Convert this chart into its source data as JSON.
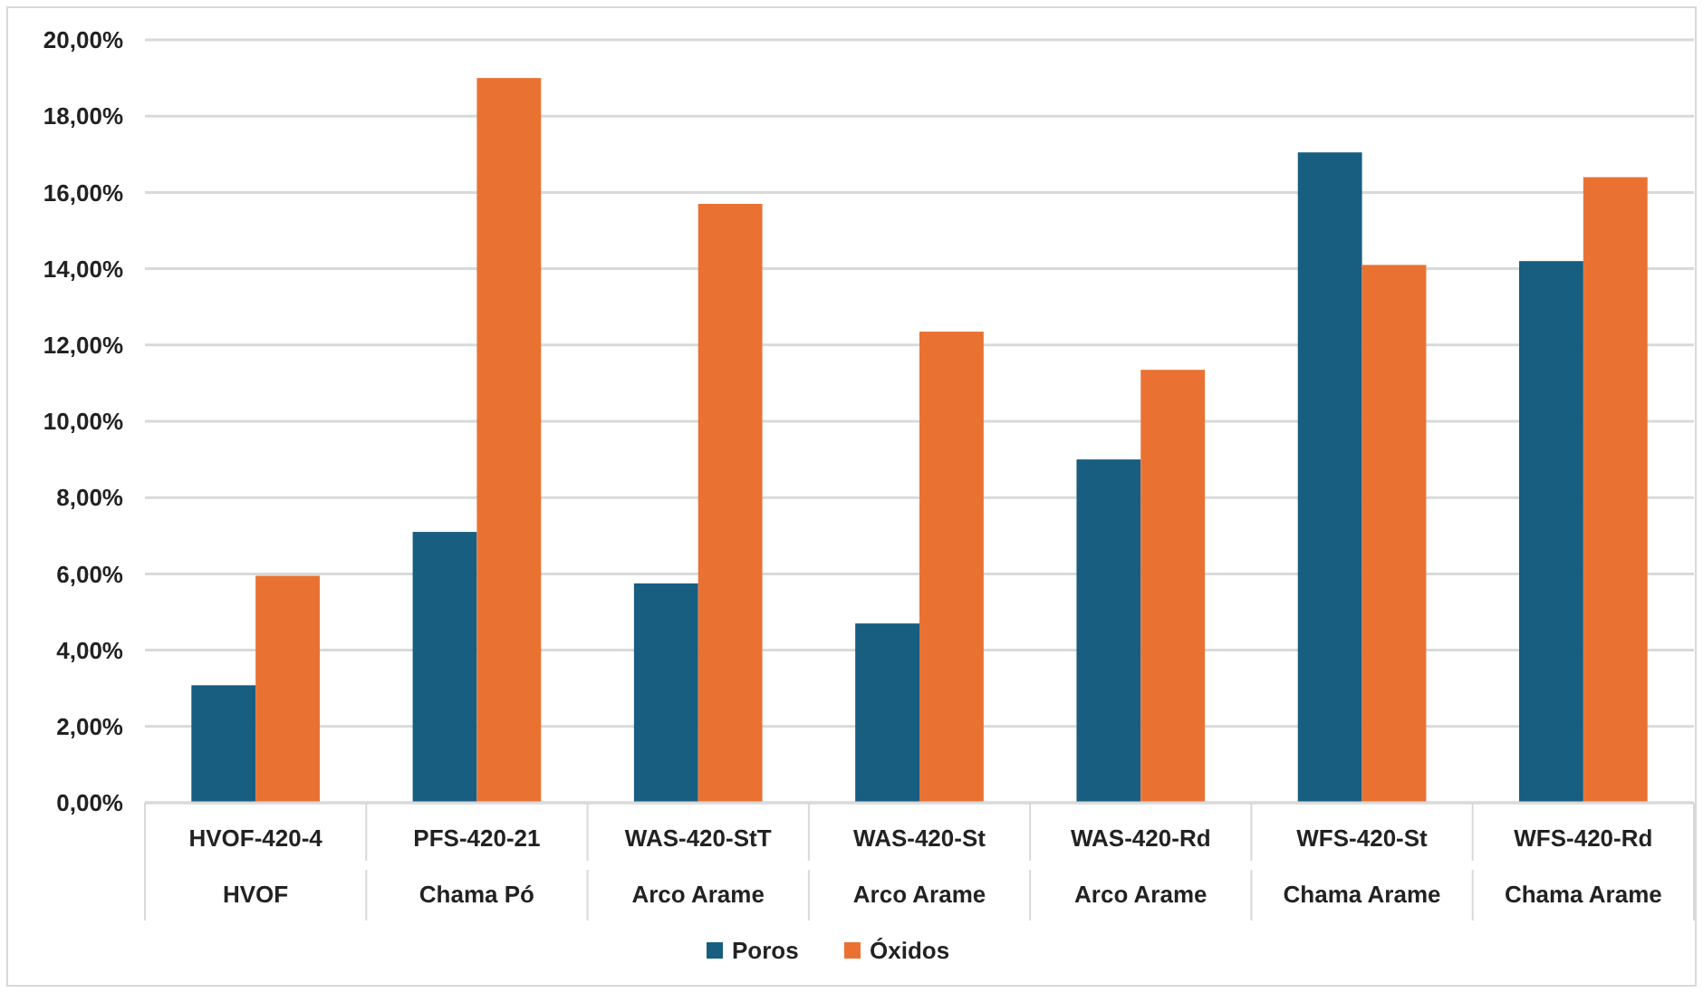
{
  "chart_data": {
    "type": "bar",
    "categories": [
      "HVOF-420-4\nHVOF",
      "PFS-420-21\nChama Pó",
      "WAS-420-StT\nArco Arame",
      "WAS-420-St\nArco Arame",
      "WAS-420-Rd\nArco Arame",
      "WFS-420-St\nChama Arame",
      "WFS-420-Rd\nChama Arame"
    ],
    "series": [
      {
        "name": "Poros",
        "color": "#175e81",
        "values": [
          3.08,
          7.1,
          5.75,
          4.7,
          9.0,
          17.05,
          14.2
        ]
      },
      {
        "name": "Óxidos",
        "color": "#e97233",
        "values": [
          5.95,
          19.0,
          15.7,
          12.35,
          11.35,
          14.1,
          16.4
        ]
      }
    ],
    "ylim": [
      0,
      20
    ],
    "yticks": [
      {
        "value": 0,
        "label": "0,00%"
      },
      {
        "value": 2,
        "label": "2,00%"
      },
      {
        "value": 4,
        "label": "4,00%"
      },
      {
        "value": 6,
        "label": "6,00%"
      },
      {
        "value": 8,
        "label": "8,00%"
      },
      {
        "value": 10,
        "label": "10,00%"
      },
      {
        "value": 12,
        "label": "12,00%"
      },
      {
        "value": 14,
        "label": "14,00%"
      },
      {
        "value": 16,
        "label": "16,00%"
      },
      {
        "value": 18,
        "label": "18,00%"
      },
      {
        "value": 20,
        "label": "20,00%"
      }
    ],
    "grid": "y",
    "legend": "bottom"
  }
}
